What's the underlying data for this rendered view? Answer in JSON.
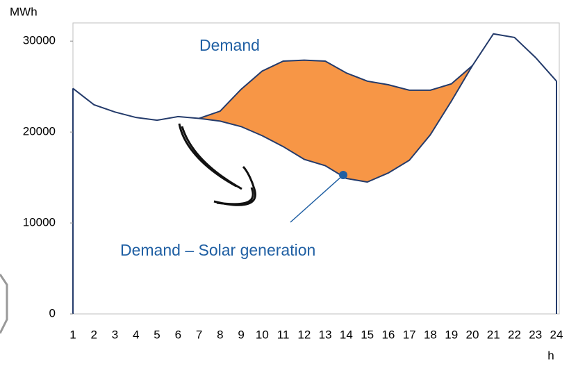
{
  "chart_data": {
    "type": "line",
    "ylabel": "MWh",
    "xlabel": "h",
    "x": [
      1,
      2,
      3,
      4,
      5,
      6,
      7,
      8,
      9,
      10,
      11,
      12,
      13,
      14,
      15,
      16,
      17,
      18,
      19,
      20,
      21,
      22,
      23,
      24
    ],
    "xlim": [
      1,
      24
    ],
    "ylim": [
      0,
      32000
    ],
    "yticks": [
      0,
      10000,
      20000,
      30000
    ],
    "series": [
      {
        "name": "Demand",
        "color": "#243b6b",
        "values": [
          24800,
          23000,
          22200,
          21600,
          21300,
          21700,
          21500,
          22300,
          24700,
          26700,
          27800,
          27900,
          27800,
          26500,
          25600,
          25200,
          24600,
          24600,
          25300,
          27300,
          30800,
          30400,
          28200,
          25600
        ]
      },
      {
        "name": "Demand – Solar generation",
        "color": "#243b6b",
        "values": [
          null,
          null,
          null,
          null,
          null,
          null,
          21500,
          21200,
          20600,
          19600,
          18400,
          17000,
          16300,
          14900,
          14500,
          15500,
          16900,
          19700,
          23400,
          27300,
          null,
          null,
          null,
          null
        ]
      }
    ],
    "fill_color": "#f79646"
  }
}
